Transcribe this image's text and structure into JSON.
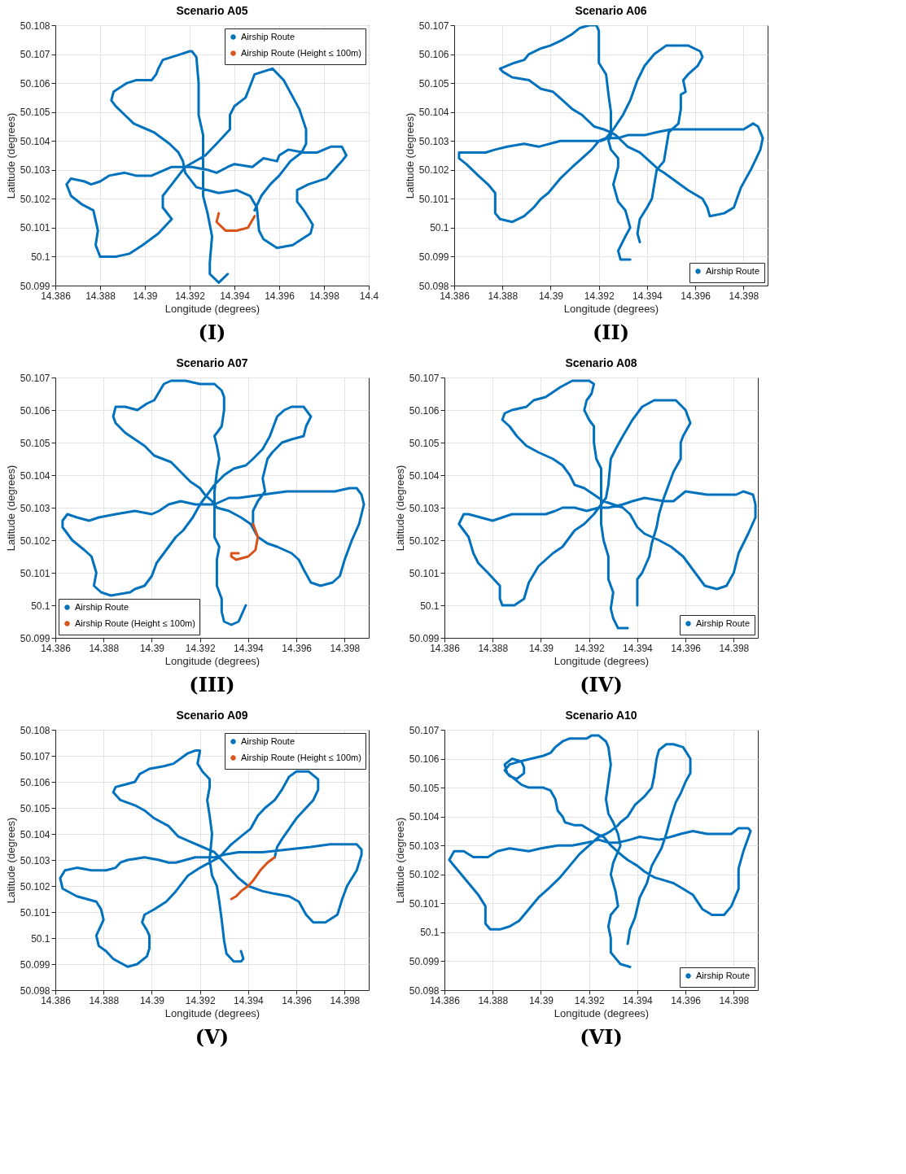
{
  "chart_data": [
    {
      "type": "line",
      "title": "Scenario A05",
      "xlabel": "Longitude (degrees)",
      "ylabel": "Latitude (degrees)",
      "xlim": [
        14.386,
        14.4
      ],
      "ylim": [
        50.099,
        50.108
      ],
      "xticks": [
        14.386,
        14.388,
        14.39,
        14.392,
        14.394,
        14.396,
        14.398,
        14.4
      ],
      "yticks": [
        50.099,
        50.1,
        50.101,
        50.102,
        50.103,
        50.104,
        50.105,
        50.106,
        50.107,
        50.108
      ],
      "grid": true,
      "legend": "top right",
      "annotations": [
        "(I)"
      ],
      "series": [
        {
          "name": "Airship Route",
          "color": "#0072bd",
          "x": [
            14.3937,
            14.3933,
            14.3929,
            14.3929,
            14.393,
            14.3928,
            14.3926,
            14.3926,
            14.3926,
            14.3924,
            14.3924,
            14.3923,
            14.3921,
            14.392,
            14.3916,
            14.3912,
            14.3908,
            14.3906,
            14.3905,
            14.3903,
            14.3896,
            14.3892,
            14.3886,
            14.3885,
            14.3887,
            14.3891,
            14.3895,
            14.3901,
            14.3904,
            14.3911,
            14.3915,
            14.3917,
            14.3918,
            14.3923,
            14.3933,
            14.3941,
            14.3947,
            14.395,
            14.3951,
            14.3953,
            14.3959,
            14.3966,
            14.3974,
            14.3975,
            14.3971,
            14.3968,
            14.3968,
            14.3973,
            14.3981,
            14.3988,
            14.399,
            14.3988,
            14.3983,
            14.3977,
            14.3971,
            14.3964,
            14.396,
            14.3959,
            14.3953,
            14.3948,
            14.394,
            14.3937,
            14.3932,
            14.3928,
            14.3921,
            14.3912,
            14.3903,
            14.3896,
            14.3891,
            14.3884,
            14.388,
            14.3876,
            14.3873,
            14.3867,
            14.3865,
            14.3867,
            14.3872,
            14.3877,
            14.3879,
            14.3878,
            14.388,
            14.3887,
            14.3893,
            14.3899,
            14.3906,
            14.3912,
            14.3908,
            14.3908,
            14.3912,
            14.3918,
            14.3927,
            14.3932,
            14.3938,
            14.3938,
            14.394,
            14.3945,
            14.3947,
            14.3949,
            14.3957,
            14.3962,
            14.3969,
            14.3972,
            14.3972,
            14.397,
            14.3965,
            14.396,
            14.3956,
            14.3952,
            14.3949
          ],
          "values": [
            50.0994,
            50.0991,
            50.0994,
            50.0998,
            50.1007,
            50.1015,
            50.1021,
            50.1033,
            50.1042,
            50.1049,
            50.106,
            50.1069,
            50.1071,
            50.1071,
            50.107,
            50.1069,
            50.1068,
            50.1065,
            50.1063,
            50.1061,
            50.1061,
            50.106,
            50.1057,
            50.1054,
            50.1052,
            50.1049,
            50.1046,
            50.1044,
            50.1043,
            50.1039,
            50.1036,
            50.1033,
            50.1029,
            50.1024,
            50.1022,
            50.1023,
            50.1021,
            50.1017,
            50.1009,
            50.1006,
            50.1003,
            50.1004,
            50.1008,
            50.1011,
            50.1016,
            50.1019,
            50.1023,
            50.1025,
            50.1027,
            50.1033,
            50.1035,
            50.1038,
            50.1038,
            50.1036,
            50.1036,
            50.1037,
            50.1035,
            50.1033,
            50.1034,
            50.1031,
            50.1032,
            50.1031,
            50.1029,
            50.103,
            50.1031,
            50.1031,
            50.1028,
            50.1028,
            50.1029,
            50.1028,
            50.1026,
            50.1025,
            50.1026,
            50.1027,
            50.1025,
            50.1021,
            50.1018,
            50.1016,
            50.1009,
            50.1004,
            50.1,
            50.1,
            50.1001,
            50.1004,
            50.1008,
            50.1013,
            50.1017,
            50.1021,
            50.1025,
            50.1031,
            50.1035,
            50.1039,
            50.1044,
            50.1049,
            50.1052,
            50.1055,
            50.1059,
            50.1063,
            50.1065,
            50.1061,
            50.1051,
            50.1044,
            50.1039,
            50.1036,
            50.1033,
            50.1028,
            50.1025,
            50.1021,
            50.1016
          ]
        },
        {
          "name": "Airship Route (Height ≤ 100m)",
          "color": "#d95319",
          "x": [
            14.3949,
            14.3946,
            14.3941,
            14.3936,
            14.3932,
            14.3933
          ],
          "values": [
            50.1014,
            50.101,
            50.1009,
            50.1009,
            50.1012,
            50.1015
          ]
        }
      ]
    },
    {
      "type": "line",
      "title": "Scenario A06",
      "xlabel": "Longitude (degrees)",
      "ylabel": "Latitude (degrees)",
      "xlim": [
        14.386,
        14.399
      ],
      "ylim": [
        50.098,
        50.107
      ],
      "xticks": [
        14.386,
        14.388,
        14.39,
        14.392,
        14.394,
        14.396,
        14.398
      ],
      "yticks": [
        50.098,
        50.099,
        50.1,
        50.101,
        50.102,
        50.103,
        50.104,
        50.105,
        50.106,
        50.107
      ],
      "grid": true,
      "legend": "bottom right",
      "annotations": [
        "(II)"
      ],
      "series": [
        {
          "name": "Airship Route",
          "color": "#0072bd",
          "x": [
            14.3933,
            14.3929,
            14.3928,
            14.3931,
            14.3933,
            14.3932,
            14.3931,
            14.3928,
            14.3926,
            14.3928,
            14.3928,
            14.3925,
            14.3924,
            14.3925,
            14.3925,
            14.3925,
            14.3924,
            14.3923,
            14.392,
            14.392,
            14.392,
            14.3919,
            14.3916,
            14.3912,
            14.3909,
            14.3905,
            14.39,
            14.3896,
            14.3891,
            14.3889,
            14.3885,
            14.3879,
            14.388,
            14.3884,
            14.3891,
            14.3896,
            14.3901,
            14.3905,
            14.3909,
            14.3913,
            14.3918,
            14.3922,
            14.3925,
            14.3927,
            14.3932,
            14.3937,
            14.3941,
            14.3945,
            14.3947,
            14.3952,
            14.3957,
            14.3963,
            14.3965,
            14.3966,
            14.3972,
            14.3976,
            14.3979,
            14.3983,
            14.3987,
            14.3988,
            14.3986,
            14.3984,
            14.398,
            14.3973,
            14.3963,
            14.3954,
            14.395,
            14.3944,
            14.3939,
            14.3932,
            14.3928,
            14.3924,
            14.3921,
            14.3916,
            14.3911,
            14.3904,
            14.3895,
            14.3889,
            14.3882,
            14.3877,
            14.3873,
            14.387,
            14.3866,
            14.3862,
            14.3862,
            14.3865,
            14.387,
            14.3874,
            14.3877,
            14.3877,
            14.3877,
            14.3879,
            14.3884,
            14.3889,
            14.3893,
            14.3896,
            14.3899,
            14.3904,
            14.3909,
            14.3913,
            14.3917,
            14.392,
            14.3923,
            14.3926,
            14.393,
            14.3933,
            14.3936,
            14.3939,
            14.3943,
            14.3948,
            14.3954,
            14.3957,
            14.3962,
            14.3963,
            14.3961,
            14.3957,
            14.3955,
            14.3956,
            14.3954,
            14.3954,
            14.3953,
            14.3949,
            14.3948,
            14.3947,
            14.3944,
            14.3943,
            14.3942,
            14.394,
            14.3937,
            14.3936,
            14.3937
          ],
          "values": [
            50.0989,
            50.0989,
            50.0992,
            50.0997,
            50.1,
            50.1003,
            50.1006,
            50.1009,
            50.1015,
            50.1021,
            50.1024,
            50.1027,
            50.103,
            50.1032,
            50.1035,
            50.104,
            50.1046,
            50.1053,
            50.1057,
            50.1062,
            50.1068,
            50.107,
            50.107,
            50.1069,
            50.1067,
            50.1065,
            50.1063,
            50.1062,
            50.106,
            50.1058,
            50.1057,
            50.1055,
            50.1054,
            50.1052,
            50.1051,
            50.1048,
            50.1047,
            50.1044,
            50.1041,
            50.1039,
            50.1035,
            50.1034,
            50.1033,
            50.1032,
            50.1028,
            50.1026,
            50.1023,
            50.102,
            50.1019,
            50.1016,
            50.1013,
            50.101,
            50.1007,
            50.1004,
            50.1005,
            50.1007,
            50.1014,
            50.102,
            50.1027,
            50.1031,
            50.1035,
            50.1036,
            50.1034,
            50.1034,
            50.1034,
            50.1034,
            50.1034,
            50.1033,
            50.1032,
            50.1032,
            50.1031,
            50.1031,
            50.103,
            50.103,
            50.103,
            50.103,
            50.1028,
            50.1029,
            50.1028,
            50.1027,
            50.1026,
            50.1026,
            50.1026,
            50.1026,
            50.1024,
            50.1022,
            50.1018,
            50.1015,
            50.1012,
            50.1009,
            50.1005,
            50.1003,
            50.1002,
            50.1004,
            50.1007,
            50.101,
            50.1012,
            50.1017,
            50.1021,
            50.1024,
            50.1027,
            50.103,
            50.1031,
            50.1034,
            50.1039,
            50.1044,
            50.1051,
            50.1056,
            50.106,
            50.1063,
            50.1063,
            50.1063,
            50.1061,
            50.1059,
            50.1056,
            50.1053,
            50.1051,
            50.1047,
            50.1046,
            50.1041,
            50.1036,
            50.1033,
            50.1028,
            50.1023,
            50.102,
            50.1015,
            50.101,
            50.1007,
            50.1003,
            50.0998,
            50.0995
          ]
        }
      ]
    },
    {
      "type": "line",
      "title": "Scenario A07",
      "xlabel": "Longitude (degrees)",
      "ylabel": "Latitude (degrees)",
      "xlim": [
        14.386,
        14.399
      ],
      "ylim": [
        50.099,
        50.107
      ],
      "xticks": [
        14.386,
        14.388,
        14.39,
        14.392,
        14.394,
        14.396,
        14.398
      ],
      "yticks": [
        50.099,
        50.1,
        50.101,
        50.102,
        50.103,
        50.104,
        50.105,
        50.106,
        50.107
      ],
      "grid": true,
      "legend": "bottom left",
      "annotations": [
        "(III)"
      ],
      "series": [
        {
          "name": "Airship Route",
          "color": "#0072bd",
          "x": [
            14.3939,
            14.3936,
            14.3933,
            14.393,
            14.3929,
            14.3929,
            14.3927,
            14.3927,
            14.3928,
            14.3926,
            14.3926,
            14.3926,
            14.3927,
            14.3928,
            14.3927,
            14.3926,
            14.3929,
            14.393,
            14.393,
            14.3929,
            14.3926,
            14.3924,
            14.392,
            14.3914,
            14.391,
            14.3908,
            14.3905,
            14.3901,
            14.3898,
            14.3894,
            14.3889,
            14.3885,
            14.3884,
            14.3885,
            14.3889,
            14.3893,
            14.3897,
            14.3901,
            14.3908,
            14.3912,
            14.3916,
            14.392,
            14.3922,
            14.3925,
            14.3927,
            14.3932,
            14.3937,
            14.3941,
            14.3944,
            14.3948,
            14.3952,
            14.3958,
            14.3961,
            14.3963,
            14.3966,
            14.397,
            14.3975,
            14.3978,
            14.398,
            14.3983,
            14.3986,
            14.3988,
            14.3987,
            14.3985,
            14.3982,
            14.3976,
            14.3968,
            14.3956,
            14.3946,
            14.3936,
            14.3932,
            14.3929,
            14.3926,
            14.3922,
            14.3918,
            14.3912,
            14.3907,
            14.3903,
            14.39,
            14.3893,
            14.3885,
            14.3878,
            14.3874,
            14.3869,
            14.3865,
            14.3863,
            14.3863,
            14.3867,
            14.3872,
            14.3875,
            14.3877,
            14.3876,
            14.3879,
            14.3883,
            14.3891,
            14.3893,
            14.3897,
            14.39,
            14.3902,
            14.3906,
            14.391,
            14.3913,
            14.3917,
            14.392,
            14.3923,
            14.3926,
            14.393,
            14.3934,
            14.3939,
            14.3942,
            14.3946,
            14.3949,
            14.3952,
            14.3955,
            14.3958,
            14.3963,
            14.3966,
            14.3964,
            14.3963,
            14.3958,
            14.3954,
            14.395,
            14.3948,
            14.3946,
            14.3947,
            14.3944,
            14.3942,
            14.3942
          ],
          "values": [
            50.1,
            50.0995,
            50.0994,
            50.0995,
            50.0998,
            50.1002,
            50.1006,
            50.1014,
            50.1018,
            50.1021,
            50.1029,
            50.1035,
            50.1041,
            50.1045,
            50.1049,
            50.1052,
            50.1055,
            50.106,
            50.1064,
            50.1066,
            50.1068,
            50.1068,
            50.1068,
            50.1069,
            50.1069,
            50.1069,
            50.1068,
            50.1063,
            50.1062,
            50.106,
            50.1061,
            50.1061,
            50.1058,
            50.1056,
            50.1053,
            50.1051,
            50.1049,
            50.1046,
            50.1044,
            50.1041,
            50.1038,
            50.1036,
            50.1034,
            50.1032,
            50.103,
            50.1029,
            50.1027,
            50.1025,
            50.1021,
            50.1019,
            50.1018,
            50.1016,
            50.1014,
            50.1011,
            50.1007,
            50.1006,
            50.1007,
            50.1009,
            50.1014,
            50.102,
            50.1025,
            50.1031,
            50.1034,
            50.1036,
            50.1036,
            50.1035,
            50.1035,
            50.1035,
            50.1034,
            50.1033,
            50.1033,
            50.1032,
            50.1031,
            50.1031,
            50.1031,
            50.1032,
            50.1031,
            50.1029,
            50.1028,
            50.1029,
            50.1028,
            50.1027,
            50.1026,
            50.1027,
            50.1028,
            50.1026,
            50.1024,
            50.102,
            50.1017,
            50.1015,
            50.101,
            50.1006,
            50.1004,
            50.1003,
            50.1004,
            50.1005,
            50.1006,
            50.1009,
            50.1013,
            50.1017,
            50.1021,
            50.1023,
            50.1027,
            50.1031,
            50.1034,
            50.1037,
            50.104,
            50.1042,
            50.1043,
            50.1045,
            50.1048,
            50.1052,
            50.1058,
            50.106,
            50.1061,
            50.1061,
            50.1058,
            50.1055,
            50.1052,
            50.1051,
            50.105,
            50.1047,
            50.1045,
            50.1039,
            50.1035,
            50.1032,
            50.1029,
            50.1025
          ]
        },
        {
          "name": "Airship Route (Height ≤ 100m)",
          "color": "#d95319",
          "x": [
            14.3942,
            14.3944,
            14.3943,
            14.394,
            14.3935,
            14.3933,
            14.3933,
            14.3936
          ],
          "values": [
            50.1025,
            50.1021,
            50.1017,
            50.1015,
            50.1014,
            50.1015,
            50.1016,
            50.1016
          ]
        }
      ]
    },
    {
      "type": "line",
      "title": "Scenario A08",
      "xlabel": "Longitude (degrees)",
      "ylabel": "Latitude (degrees)",
      "xlim": [
        14.386,
        14.399
      ],
      "ylim": [
        50.099,
        50.107
      ],
      "xticks": [
        14.386,
        14.388,
        14.39,
        14.392,
        14.394,
        14.396,
        14.398
      ],
      "yticks": [
        50.099,
        50.1,
        50.101,
        50.102,
        50.103,
        50.104,
        50.105,
        50.106,
        50.107
      ],
      "grid": true,
      "legend": "bottom right",
      "annotations": [
        "(IV)"
      ],
      "series": [
        {
          "name": "Airship Route",
          "color": "#0072bd",
          "x": [
            14.3936,
            14.3932,
            14.393,
            14.3929,
            14.393,
            14.3928,
            14.3928,
            14.3926,
            14.3925,
            14.3925,
            14.3925,
            14.3925,
            14.3923,
            14.3922,
            14.3922,
            14.392,
            14.3918,
            14.3919,
            14.3921,
            14.3922,
            14.392,
            14.3918,
            14.3913,
            14.3908,
            14.3902,
            14.3897,
            14.3894,
            14.3888,
            14.3885,
            14.3884,
            14.3887,
            14.389,
            14.3894,
            14.3899,
            14.3902,
            14.3905,
            14.3909,
            14.3912,
            14.3914,
            14.3918,
            14.3922,
            14.3926,
            14.393,
            14.3934,
            14.3937,
            14.394,
            14.3943,
            14.3949,
            14.3954,
            14.3959,
            14.3963,
            14.3968,
            14.3973,
            14.3977,
            14.398,
            14.3982,
            14.3986,
            14.3989,
            14.3989,
            14.3988,
            14.3984,
            14.3981,
            14.3976,
            14.3969,
            14.396,
            14.3955,
            14.3951,
            14.3943,
            14.3938,
            14.3934,
            14.3928,
            14.3924,
            14.3919,
            14.3914,
            14.3909,
            14.3906,
            14.3902,
            14.3895,
            14.3888,
            14.388,
            14.3875,
            14.387,
            14.3868,
            14.3866,
            14.387,
            14.3872,
            14.3874,
            14.3878,
            14.3883,
            14.3883,
            14.3884,
            14.3889,
            14.3893,
            14.3895,
            14.3899,
            14.3905,
            14.3909,
            14.3912,
            14.3914,
            14.3918,
            14.3922,
            14.3925,
            14.3927,
            14.3928,
            14.3929,
            14.3931,
            14.3934,
            14.3938,
            14.3942,
            14.3947,
            14.3952,
            14.3956,
            14.396,
            14.3962,
            14.3959,
            14.3958,
            14.3958,
            14.3955,
            14.3953,
            14.3951,
            14.3949,
            14.3948,
            14.3946,
            14.3945,
            14.3942,
            14.394,
            14.394,
            14.394
          ],
          "values": [
            50.0993,
            50.0993,
            50.0996,
            50.0999,
            50.1004,
            50.1008,
            50.1015,
            50.102,
            50.1025,
            50.103,
            50.1036,
            50.1042,
            50.1045,
            50.105,
            50.1055,
            50.1057,
            50.106,
            50.1063,
            50.1065,
            50.1068,
            50.1069,
            50.1069,
            50.1069,
            50.1067,
            50.1064,
            50.1063,
            50.1061,
            50.106,
            50.1059,
            50.1057,
            50.1055,
            50.1052,
            50.1049,
            50.1047,
            50.1046,
            50.1045,
            50.1043,
            50.104,
            50.1037,
            50.1036,
            50.1034,
            50.1032,
            50.1031,
            50.103,
            50.1028,
            50.1024,
            50.1022,
            50.102,
            50.1018,
            50.1015,
            50.1011,
            50.1006,
            50.1005,
            50.1006,
            50.101,
            50.1016,
            50.1022,
            50.1027,
            50.1031,
            50.1034,
            50.1035,
            50.1034,
            50.1034,
            50.1034,
            50.1035,
            50.1032,
            50.1032,
            50.1033,
            50.1032,
            50.1031,
            50.103,
            50.103,
            50.1029,
            50.103,
            50.103,
            50.1029,
            50.1028,
            50.1028,
            50.1028,
            50.1026,
            50.1027,
            50.1028,
            50.1028,
            50.1025,
            50.1021,
            50.1016,
            50.1013,
            50.101,
            50.1006,
            50.1002,
            50.1,
            50.1,
            50.1002,
            50.1007,
            50.1012,
            50.1016,
            50.1018,
            50.1021,
            50.1023,
            50.1025,
            50.1028,
            50.1031,
            50.1033,
            50.1037,
            50.1045,
            50.1048,
            50.1052,
            50.1057,
            50.1061,
            50.1063,
            50.1063,
            50.1063,
            50.106,
            50.1056,
            50.1052,
            50.105,
            50.1045,
            50.1041,
            50.1037,
            50.1033,
            50.1028,
            50.1024,
            50.1019,
            50.1015,
            50.101,
            50.1008,
            50.1004,
            50.1
          ]
        }
      ]
    },
    {
      "type": "line",
      "title": "Scenario A09",
      "xlabel": "Longitude (degrees)",
      "ylabel": "Latitude (degrees)",
      "xlim": [
        14.386,
        14.399
      ],
      "ylim": [
        50.098,
        50.108
      ],
      "xticks": [
        14.386,
        14.388,
        14.39,
        14.392,
        14.394,
        14.396,
        14.398
      ],
      "yticks": [
        50.098,
        50.099,
        50.1,
        50.101,
        50.102,
        50.103,
        50.104,
        50.105,
        50.106,
        50.107,
        50.108
      ],
      "grid": true,
      "legend": "top right",
      "annotations": [
        "(V)"
      ],
      "series": [
        {
          "name": "Airship Route",
          "color": "#0072bd",
          "x": [
            14.3937,
            14.3938,
            14.3937,
            14.3934,
            14.3931,
            14.393,
            14.3929,
            14.3928,
            14.3927,
            14.3925,
            14.3924,
            14.3925,
            14.3924,
            14.3923,
            14.3924,
            14.3924,
            14.3921,
            14.3919,
            14.392,
            14.3918,
            14.3915,
            14.3912,
            14.3909,
            14.3905,
            14.3899,
            14.3895,
            14.3893,
            14.3889,
            14.3885,
            14.3884,
            14.3887,
            14.3893,
            14.3897,
            14.3901,
            14.3907,
            14.3911,
            14.3916,
            14.3921,
            14.3926,
            14.393,
            14.3932,
            14.3935,
            14.3936,
            14.394,
            14.3946,
            14.3951,
            14.3957,
            14.3961,
            14.3964,
            14.3967,
            14.3972,
            14.3977,
            14.3979,
            14.3981,
            14.3985,
            14.3987,
            14.3987,
            14.3985,
            14.398,
            14.3974,
            14.3966,
            14.3956,
            14.3946,
            14.3936,
            14.393,
            14.3926,
            14.3918,
            14.3914,
            14.391,
            14.3907,
            14.3903,
            14.3897,
            14.389,
            14.3887,
            14.3885,
            14.3881,
            14.3875,
            14.3869,
            14.3864,
            14.3862,
            14.3863,
            14.3869,
            14.3877,
            14.3879,
            14.388,
            14.3877,
            14.3878,
            14.3881,
            14.3884,
            14.389,
            14.3894,
            14.3898,
            14.3899,
            14.3899,
            14.3898,
            14.3896,
            14.3897,
            14.3901,
            14.3906,
            14.391,
            14.3915,
            14.392,
            14.3924,
            14.3928,
            14.3933,
            14.3937,
            14.3941,
            14.3944,
            14.3947,
            14.3951,
            14.3954,
            14.3957,
            14.396,
            14.3965,
            14.3969,
            14.3969,
            14.3967,
            14.3964,
            14.396,
            14.3957,
            14.3954,
            14.3952,
            14.3951
          ],
          "values": [
            50.0995,
            50.0992,
            50.0991,
            50.0991,
            50.0994,
            50.0999,
            50.1007,
            50.1014,
            50.102,
            50.1024,
            50.103,
            50.104,
            50.1047,
            50.1053,
            50.1058,
            50.1061,
            50.1064,
            50.1067,
            50.1072,
            50.1072,
            50.1071,
            50.1069,
            50.1067,
            50.1066,
            50.1065,
            50.1063,
            50.106,
            50.1059,
            50.1058,
            50.1056,
            50.1053,
            50.1051,
            50.1049,
            50.1046,
            50.1043,
            50.1039,
            50.1037,
            50.1035,
            50.1033,
            50.1029,
            50.1027,
            50.1024,
            50.1023,
            50.102,
            50.1018,
            50.1017,
            50.1016,
            50.1014,
            50.1009,
            50.1006,
            50.1006,
            50.1009,
            50.1015,
            50.102,
            50.1026,
            50.1032,
            50.1034,
            50.1036,
            50.1036,
            50.1036,
            50.1035,
            50.1034,
            50.1033,
            50.1033,
            50.1032,
            50.1031,
            50.1031,
            50.103,
            50.1029,
            50.1029,
            50.103,
            50.1031,
            50.103,
            50.1029,
            50.1027,
            50.1026,
            50.1026,
            50.1027,
            50.1026,
            50.1023,
            50.1019,
            50.1016,
            50.1014,
            50.1011,
            50.1007,
            50.1001,
            50.0997,
            50.0995,
            50.0992,
            50.0989,
            50.099,
            50.0993,
            50.0996,
            50.1001,
            50.1003,
            50.1006,
            50.1009,
            50.1011,
            50.1014,
            50.1018,
            50.1024,
            50.1027,
            50.1029,
            50.1031,
            50.1036,
            50.1039,
            50.1042,
            50.1047,
            50.105,
            50.1053,
            50.1057,
            50.1062,
            50.1064,
            50.1064,
            50.1061,
            50.1057,
            50.1053,
            50.105,
            50.1046,
            50.1042,
            50.1038,
            50.1035,
            50.1031
          ]
        },
        {
          "name": "Airship Route (Height ≤ 100m)",
          "color": "#d95319",
          "x": [
            14.3951,
            14.3948,
            14.3945,
            14.3942,
            14.394,
            14.3937,
            14.3935,
            14.3933
          ],
          "values": [
            50.1031,
            50.1029,
            50.1026,
            50.1022,
            50.102,
            50.1018,
            50.1016,
            50.1015
          ]
        }
      ]
    },
    {
      "type": "line",
      "title": "Scenario A10",
      "xlabel": "Longitude (degrees)",
      "ylabel": "Latitude (degrees)",
      "xlim": [
        14.386,
        14.399
      ],
      "ylim": [
        50.098,
        50.107
      ],
      "xticks": [
        14.386,
        14.388,
        14.39,
        14.392,
        14.394,
        14.396,
        14.398
      ],
      "yticks": [
        50.098,
        50.099,
        50.1,
        50.101,
        50.102,
        50.103,
        50.104,
        50.105,
        50.106,
        50.107
      ],
      "grid": true,
      "legend": "bottom right",
      "annotations": [
        "(VI)"
      ],
      "series": [
        {
          "name": "Airship Route",
          "color": "#0072bd",
          "x": [
            14.3937,
            14.3933,
            14.3931,
            14.3929,
            14.3929,
            14.3928,
            14.3929,
            14.3932,
            14.3931,
            14.3929,
            14.393,
            14.3933,
            14.3932,
            14.393,
            14.3928,
            14.3927,
            14.3928,
            14.3929,
            14.3928,
            14.3927,
            14.3924,
            14.3921,
            14.3919,
            14.3912,
            14.3909,
            14.3906,
            14.3904,
            14.3901,
            14.3896,
            14.3891,
            14.3887,
            14.3885,
            14.3887,
            14.389,
            14.3893,
            14.3893,
            14.3892,
            14.3888,
            14.3885,
            14.3886,
            14.3889,
            14.3892,
            14.3895,
            14.3901,
            14.3904,
            14.3906,
            14.3907,
            14.3909,
            14.391,
            14.3914,
            14.3917,
            14.3921,
            14.3923,
            14.3926,
            14.3929,
            14.3933,
            14.3936,
            14.394,
            14.3943,
            14.3947,
            14.3951,
            14.3955,
            14.3959,
            14.3963,
            14.3967,
            14.3971,
            14.3976,
            14.3979,
            14.3982,
            14.3982,
            14.3984,
            14.3987,
            14.3986,
            14.3982,
            14.3979,
            14.3975,
            14.3969,
            14.3963,
            14.3958,
            14.3954,
            14.3949,
            14.3941,
            14.3937,
            14.3932,
            14.3928,
            14.3924,
            14.3919,
            14.3913,
            14.3907,
            14.39,
            14.3895,
            14.3887,
            14.3882,
            14.3878,
            14.3872,
            14.3868,
            14.3864,
            14.3862,
            14.3866,
            14.387,
            14.3874,
            14.3877,
            14.3877,
            14.3879,
            14.3883,
            14.3887,
            14.3891,
            14.3895,
            14.3899,
            14.3903,
            14.3908,
            14.3912,
            14.3916,
            14.392,
            14.3924,
            14.3927,
            14.3929,
            14.3932,
            14.3933,
            14.3936,
            14.3939,
            14.3943,
            14.3946,
            14.3947,
            14.3948,
            14.3949,
            14.3952,
            14.3955,
            14.3959,
            14.3962,
            14.3962,
            14.396,
            14.3958,
            14.3956,
            14.3954,
            14.3952,
            14.395,
            14.3946,
            14.3944,
            14.3941,
            14.3939,
            14.3937,
            14.3936
          ],
          "values": [
            50.0988,
            50.0989,
            50.0991,
            50.0993,
            50.0998,
            50.1002,
            50.1006,
            50.1009,
            50.1014,
            50.102,
            50.1024,
            50.103,
            50.1034,
            50.1038,
            50.1041,
            50.1046,
            50.1052,
            50.1058,
            50.1064,
            50.1066,
            50.1068,
            50.1068,
            50.1067,
            50.1067,
            50.1066,
            50.1064,
            50.1062,
            50.1061,
            50.106,
            50.1059,
            50.1058,
            50.1056,
            50.1054,
            50.1053,
            50.1055,
            50.1057,
            50.1059,
            50.106,
            50.1058,
            50.1055,
            50.1053,
            50.1051,
            50.105,
            50.105,
            50.1049,
            50.1046,
            50.1042,
            50.104,
            50.1038,
            50.1037,
            50.1037,
            50.1035,
            50.1034,
            50.1033,
            50.103,
            50.1027,
            50.1025,
            50.1023,
            50.1021,
            50.1019,
            50.1018,
            50.1017,
            50.1015,
            50.1013,
            50.1008,
            50.1006,
            50.1006,
            50.1009,
            50.1015,
            50.1022,
            50.1028,
            50.1035,
            50.1036,
            50.1036,
            50.1034,
            50.1034,
            50.1034,
            50.1035,
            50.1034,
            50.1033,
            50.1032,
            50.1033,
            50.1032,
            50.1031,
            50.1031,
            50.1032,
            50.1031,
            50.103,
            50.103,
            50.1029,
            50.1028,
            50.1029,
            50.1028,
            50.1026,
            50.1026,
            50.1028,
            50.1028,
            50.1025,
            50.1021,
            50.1017,
            50.1013,
            50.1009,
            50.1003,
            50.1001,
            50.1001,
            50.1002,
            50.1004,
            50.1008,
            50.1012,
            50.1015,
            50.1019,
            50.1023,
            50.1027,
            50.103,
            50.1033,
            50.1034,
            50.1035,
            50.1037,
            50.1038,
            50.104,
            50.1044,
            50.1047,
            50.105,
            50.1054,
            50.106,
            50.1063,
            50.1065,
            50.1065,
            50.1064,
            50.106,
            50.1055,
            50.1052,
            50.1048,
            50.1045,
            50.104,
            50.1034,
            50.1029,
            50.1023,
            50.1017,
            50.1012,
            50.1005,
            50.1001,
            50.0996
          ]
        }
      ]
    }
  ]
}
